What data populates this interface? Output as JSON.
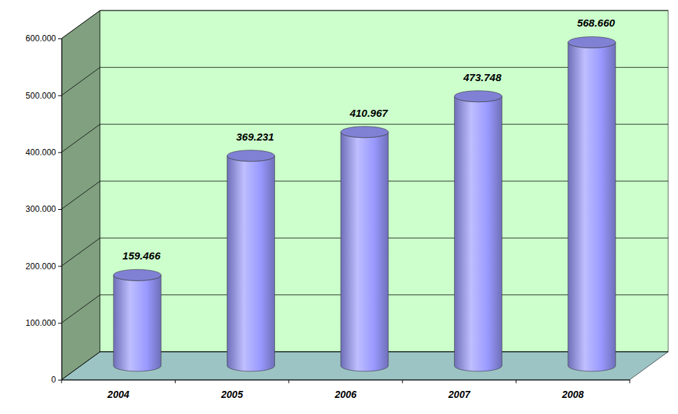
{
  "chart_data": {
    "type": "bar",
    "categories": [
      "2004",
      "2005",
      "2006",
      "2007",
      "2008"
    ],
    "values": [
      159466,
      369231,
      410967,
      473748,
      568660
    ],
    "value_labels": [
      "159.466",
      "369.231",
      "410.967",
      "473.748",
      "568.660"
    ],
    "color": "#9999ff",
    "ylim": [
      0,
      600000
    ],
    "yticks": [
      0,
      {
        "value": 100000,
        "label": "100.000"
      },
      {
        "value": 200000,
        "label": "200.000"
      },
      {
        "value": 300000,
        "label": "300.000"
      },
      {
        "value": 400000,
        "label": "400.000"
      },
      {
        "value": 500000,
        "label": "500.000"
      },
      {
        "value": 600000,
        "label": "600.000"
      }
    ],
    "grid": true,
    "data_labels": true
  }
}
